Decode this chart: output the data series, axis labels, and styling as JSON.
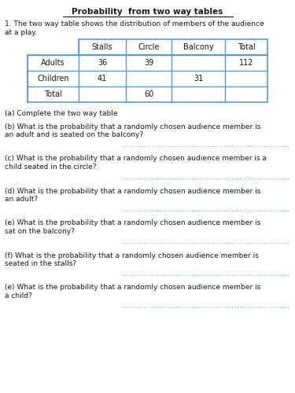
{
  "title": "Probability  from two way tables",
  "intro_line1": "1. The two way table shows the distribution of members of the audience",
  "intro_line2": "at a play.",
  "col_headers": [
    "Stalls",
    "Circle",
    "Balcony",
    "Total"
  ],
  "table_rows": [
    [
      "Adults",
      "36",
      "39",
      "",
      "112"
    ],
    [
      "Children",
      "41",
      "",
      "31",
      ""
    ],
    [
      "Total",
      "",
      "60",
      "",
      ""
    ]
  ],
  "questions": [
    "(a) Complete the two way table",
    "(b) What is the probability that a randomly chosen audience member is\nan adult and is seated on the balcony?",
    "(c) What is the probability that a randomly chosen audience member is a\nchild seated in the circle?",
    "(d) What is the probability that a randomly chosen audience member is\nan adult?",
    "(e) What is the probability that a randomly chosen audience member is\nsat on the balcony?",
    "(f) What is the probability that a randomly chosen audience member is\nseated in the stalls?",
    "(e) What is the probability that a randomly chosen audience member is\na child?"
  ],
  "has_answer_line": [
    false,
    true,
    true,
    true,
    true,
    true,
    true
  ],
  "bg_color": "#ffffff",
  "text_color": "#1a1a1a",
  "table_border_color": "#5b9bd5",
  "answer_line_color": "#5b9bd5",
  "title_fontsize": 7.5,
  "body_fontsize": 6.5,
  "table_fontsize": 7.0
}
